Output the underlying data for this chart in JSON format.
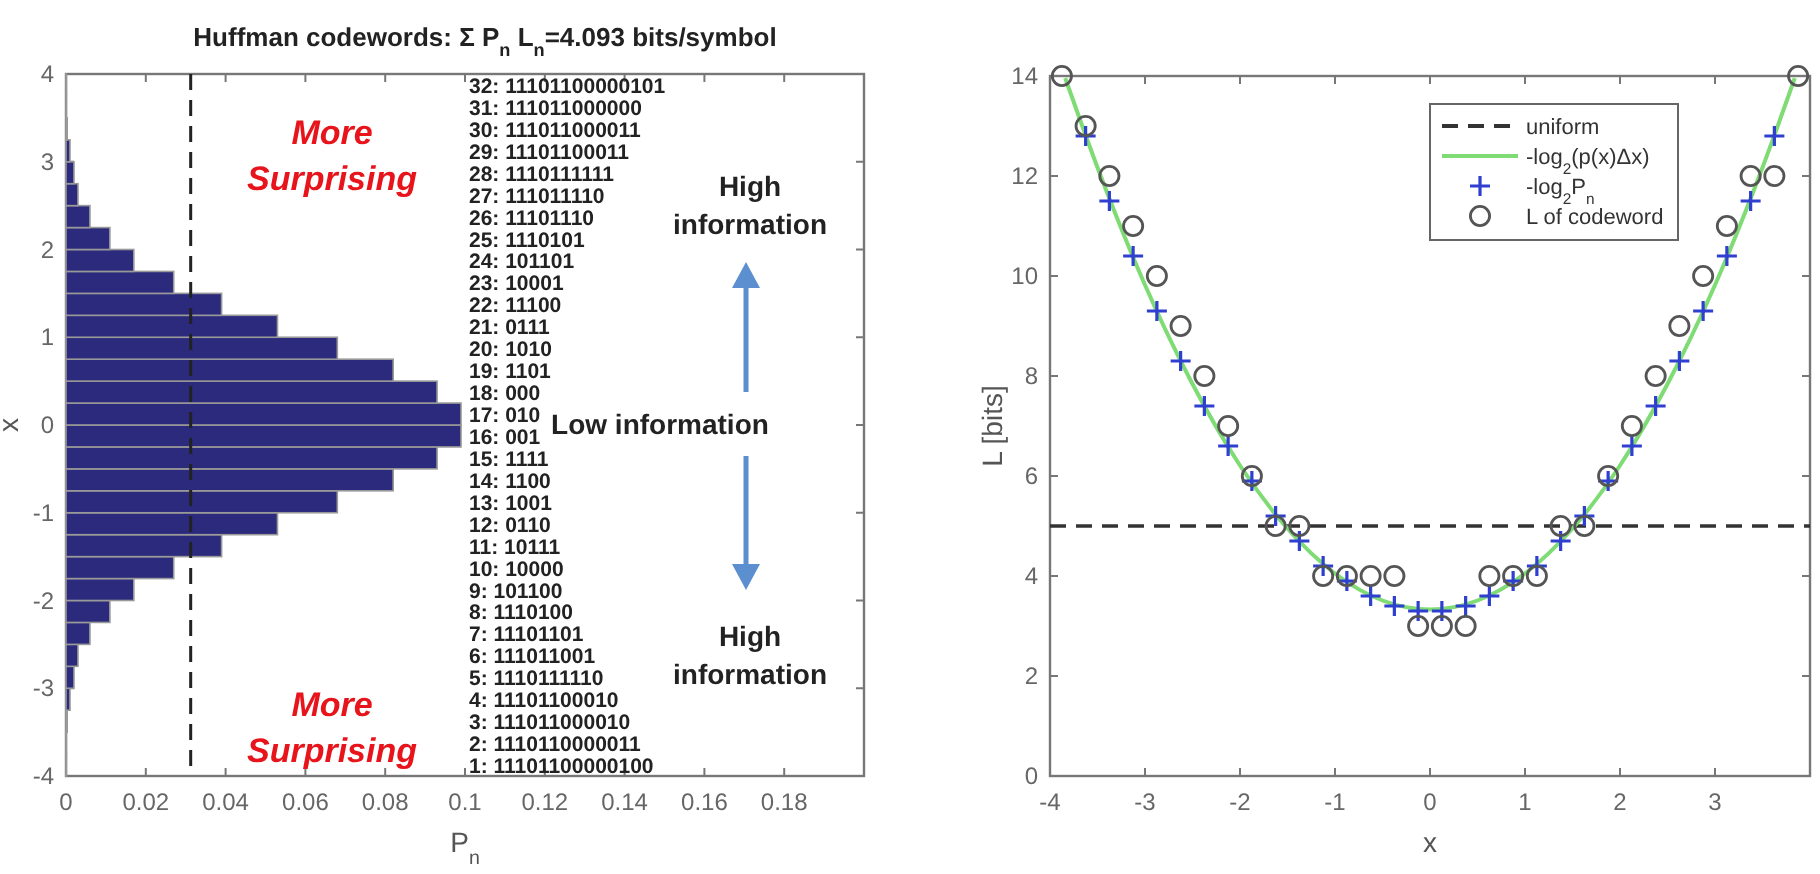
{
  "chart_data": [
    {
      "type": "histogram",
      "orientation": "horizontal",
      "title": "Huffman codewords: Σ P$_{n}$ L$_{n}$=4.093 bits/symbol",
      "xlabel": "P$_{n}$",
      "ylabel": "x",
      "bins": [
        -4,
        -3.75,
        -3.5,
        -3.25,
        -3,
        -2.75,
        -2.5,
        -2.25,
        -2,
        -1.75,
        -1.5,
        -1.25,
        -1,
        -0.75,
        -0.5,
        -0.25,
        0,
        0.25,
        0.5,
        0.75,
        1,
        1.25,
        1.5,
        1.75,
        2,
        2.25,
        2.5,
        2.75,
        3,
        3.25,
        3.5,
        3.75,
        4
      ],
      "values": [
        0.0001,
        0.0001,
        0.0003,
        0.001,
        0.002,
        0.003,
        0.006,
        0.011,
        0.017,
        0.027,
        0.039,
        0.053,
        0.068,
        0.082,
        0.093,
        0.099,
        0.099,
        0.093,
        0.082,
        0.068,
        0.053,
        0.039,
        0.027,
        0.017,
        0.011,
        0.006,
        0.003,
        0.002,
        0.001,
        0.0003,
        0.0001,
        0.0001
      ],
      "color": "#2b2a7c",
      "xlim": [
        0,
        0.2
      ],
      "xticks": [
        0,
        0.02,
        0.04,
        0.06,
        0.08,
        0.1,
        0.12,
        0.14,
        0.16,
        0.18
      ],
      "ylim": [
        -4,
        4
      ],
      "yticks": [
        -4,
        -3,
        -2,
        -1,
        0,
        1,
        2,
        3,
        4
      ],
      "ref_lines": [
        {
          "axis": "x",
          "value": 0.03125,
          "color": "#222222",
          "line_style": "dashed"
        }
      ],
      "grid": false,
      "annotations": [
        "More Surprising",
        "High information",
        "Low information",
        "High information",
        "More Surprising",
        "1: 11101100000100",
        "2: 1110110000011",
        "3: 111011000010",
        "4: 11101100010",
        "5: 1110111110",
        "6: 111011001",
        "7: 11101101",
        "8: 1110100",
        "9: 101100",
        "10: 10000",
        "11: 10111",
        "12: 0110",
        "13: 1001",
        "14: 1100",
        "15: 1111",
        "16: 001",
        "17: 010",
        "18: 000",
        "19: 1101",
        "20: 1010",
        "21: 0111",
        "22: 11100",
        "23: 10001",
        "24: 101101",
        "25: 1110101",
        "26: 11101110",
        "27: 111011110",
        "28: 1110111111",
        "29: 11101100011",
        "30: 111011000011",
        "31: 111011000000",
        "32: 11101100000101"
      ]
    },
    {
      "type": "line",
      "xlabel": "x",
      "ylabel": "L [bits]",
      "xlim": [
        -4,
        4
      ],
      "xticks": [
        -4,
        -3,
        -2,
        -1,
        0,
        1,
        2,
        3
      ],
      "ylim": [
        0,
        14
      ],
      "yticks": [
        0,
        2,
        4,
        6,
        8,
        10,
        12,
        14
      ],
      "grid": false,
      "legend": "top right",
      "series": [
        {
          "name": "uniform",
          "type": "line",
          "line_style": "dashed",
          "marker": "none",
          "color": "#333333",
          "x": [
            -4,
            4
          ],
          "values": [
            5,
            5
          ]
        },
        {
          "name": "-log$_{2}$(p(x)Δx)",
          "type": "line",
          "line_style": "solid",
          "marker": "none",
          "color": "#7fdc74",
          "x": [
            -3.84,
            -3.5,
            -3,
            -2.5,
            -2,
            -1.5,
            -1,
            -0.5,
            0,
            0.5,
            1,
            1.5,
            2,
            2.5,
            3,
            3.5,
            3.84
          ],
          "values": [
            13.96,
            12.17,
            9.82,
            7.84,
            6.21,
            4.95,
            4.05,
            3.51,
            3.33,
            3.51,
            4.05,
            4.95,
            6.21,
            7.84,
            9.82,
            12.17,
            13.96
          ]
        },
        {
          "name": "-log$_{2}$P$_{n}$",
          "type": "scatter",
          "marker": "cross",
          "color": "#2f3fd0",
          "x": [
            -3.625,
            -3.375,
            -3.125,
            -2.875,
            -2.625,
            -2.375,
            -2.125,
            -1.875,
            -1.625,
            -1.375,
            -1.125,
            -0.875,
            -0.625,
            -0.375,
            -0.125,
            0.125,
            0.375,
            0.625,
            0.875,
            1.125,
            1.375,
            1.625,
            1.875,
            2.125,
            2.375,
            2.625,
            2.875,
            3.125,
            3.375,
            3.625
          ],
          "values": [
            12.8,
            11.5,
            10.4,
            9.3,
            8.3,
            7.4,
            6.6,
            5.9,
            5.2,
            4.7,
            4.2,
            3.9,
            3.6,
            3.4,
            3.3,
            3.3,
            3.4,
            3.6,
            3.9,
            4.2,
            4.7,
            5.2,
            5.9,
            6.6,
            7.4,
            8.3,
            9.3,
            10.4,
            11.5,
            12.8
          ]
        },
        {
          "name": "L of codeword",
          "type": "scatter",
          "marker": "circle",
          "color": "#555555",
          "x": [
            -3.875,
            -3.625,
            -3.375,
            -3.125,
            -2.875,
            -2.625,
            -2.375,
            -2.125,
            -1.875,
            -1.625,
            -1.375,
            -1.125,
            -0.875,
            -0.625,
            -0.375,
            -0.125,
            0.125,
            0.375,
            0.625,
            0.875,
            1.125,
            1.375,
            1.625,
            1.875,
            2.125,
            2.375,
            2.625,
            2.875,
            3.125,
            3.375,
            3.625,
            3.875
          ],
          "values": [
            14,
            13,
            12,
            11,
            10,
            9,
            8,
            7,
            6,
            5,
            5,
            4,
            4,
            4,
            4,
            3,
            3,
            3,
            4,
            4,
            4,
            5,
            5,
            6,
            7,
            8,
            9,
            10,
            11,
            12,
            12,
            14
          ]
        }
      ]
    }
  ]
}
